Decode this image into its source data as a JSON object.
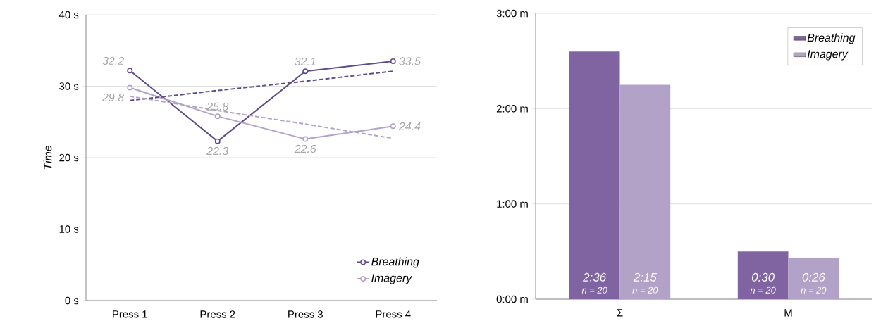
{
  "chart_data": [
    {
      "type": "line",
      "ylabel": "Time",
      "categories": [
        "Press 1",
        "Press 2",
        "Press 3",
        "Press 4"
      ],
      "series": [
        {
          "name": "Breathing",
          "color": "#5f4b8b",
          "values": [
            32.2,
            22.3,
            32.1,
            33.5
          ],
          "value_labels": [
            "32.2",
            "22.3",
            "32.1",
            "33.5"
          ]
        },
        {
          "name": "Imagery",
          "color": "#b3a2c7",
          "values": [
            29.8,
            25.8,
            22.6,
            24.4
          ],
          "value_labels": [
            "29.8",
            "25.8",
            "22.6",
            "24.4"
          ]
        },
        {
          "type": "line",
          "color": "#5f4b8b",
          "values": [
            28.0,
            29.4,
            30.7,
            32.1
          ],
          "line_style": "dashed",
          "marker": "none"
        },
        {
          "type": "line",
          "color": "#b3a2c7",
          "values": [
            28.6,
            26.6,
            24.7,
            22.7
          ],
          "line_style": "dashed",
          "marker": "none"
        }
      ],
      "ylim": [
        0,
        40
      ],
      "yticks": [
        {
          "value": 0,
          "label": "0 s"
        },
        {
          "value": 10,
          "label": "10 s"
        },
        {
          "value": 20,
          "label": "20 s"
        },
        {
          "value": 30,
          "label": "30 s"
        },
        {
          "value": 40,
          "label": "40 s"
        }
      ],
      "grid": "y",
      "legend": "bottom right",
      "marker": "circle",
      "line_style": "solid"
    },
    {
      "type": "bar",
      "categories": [
        "Σ",
        "M"
      ],
      "series": [
        {
          "name": "Breathing",
          "color": "#8064a2",
          "values": [
            2.6,
            0.5
          ],
          "value_labels": [
            "2:36",
            "0:30"
          ]
        },
        {
          "name": "Imagery",
          "color": "#b3a2c7",
          "values": [
            2.25,
            0.43
          ],
          "value_labels": [
            "2:15",
            "0:26"
          ]
        }
      ],
      "ylim": [
        0,
        3
      ],
      "yticks": [
        {
          "value": 0,
          "label": "0:00 m"
        },
        {
          "value": 1,
          "label": "1:00 m"
        },
        {
          "value": 2,
          "label": "2:00 m"
        },
        {
          "value": 3,
          "label": "3:00 m"
        }
      ],
      "grid": "y",
      "legend": "top right",
      "annotations": [
        "n = 20",
        "n = 20",
        "n = 20",
        "n = 20"
      ]
    }
  ]
}
